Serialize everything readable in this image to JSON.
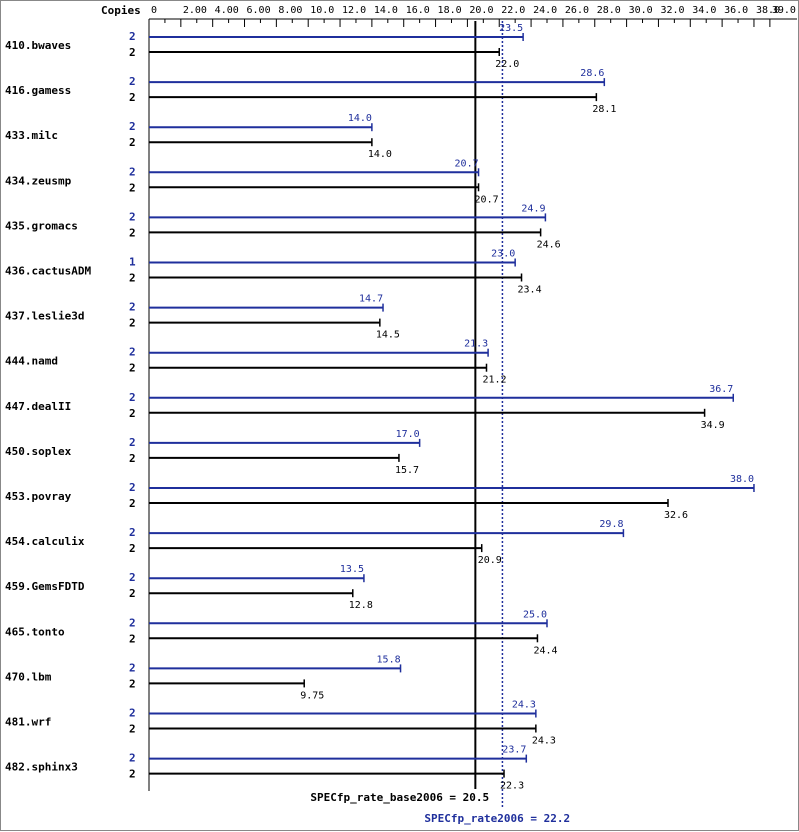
{
  "chart_data": {
    "type": "bar",
    "orientation": "horizontal",
    "axis_label": "Copies",
    "ticks": [
      "0",
      "2.00",
      "4.00",
      "6.00",
      "8.00",
      "10.0",
      "12.0",
      "14.0",
      "16.0",
      "18.0",
      "20.0",
      "22.0",
      "24.0",
      "26.0",
      "28.0",
      "30.0",
      "32.0",
      "34.0",
      "36.0",
      "38.0",
      "39.0"
    ],
    "xlim": [
      0,
      39.0
    ],
    "categories": [
      "410.bwaves",
      "416.gamess",
      "433.milc",
      "434.zeusmp",
      "435.gromacs",
      "436.cactusADM",
      "437.leslie3d",
      "444.namd",
      "447.dealII",
      "450.soplex",
      "453.povray",
      "454.calculix",
      "459.GemsFDTD",
      "465.tonto",
      "470.lbm",
      "481.wrf",
      "482.sphinx3"
    ],
    "series": [
      {
        "key": "peak",
        "copies": [
          "2",
          "2",
          "2",
          "2",
          "2",
          "1",
          "2",
          "2",
          "2",
          "2",
          "2",
          "2",
          "2",
          "2",
          "2",
          "2",
          "2"
        ],
        "values": [
          23.5,
          28.6,
          14.0,
          20.7,
          24.9,
          23.0,
          14.7,
          21.3,
          36.7,
          17.0,
          38.0,
          29.8,
          13.5,
          25.0,
          15.8,
          24.3,
          23.7
        ],
        "labels": [
          "23.5",
          "28.6",
          "14.0",
          "20.7",
          "24.9",
          "23.0",
          "14.7",
          "21.3",
          "36.7",
          "17.0",
          "38.0",
          "29.8",
          "13.5",
          "25.0",
          "15.8",
          "24.3",
          "23.7"
        ]
      },
      {
        "key": "base",
        "copies": [
          "2",
          "2",
          "2",
          "2",
          "2",
          "2",
          "2",
          "2",
          "2",
          "2",
          "2",
          "2",
          "2",
          "2",
          "2",
          "2",
          "2"
        ],
        "values": [
          22.0,
          28.1,
          14.0,
          20.7,
          24.6,
          23.4,
          14.5,
          21.2,
          34.9,
          15.7,
          32.6,
          20.9,
          12.8,
          24.4,
          9.75,
          24.3,
          22.3
        ],
        "labels": [
          "22.0",
          "28.1",
          "14.0",
          "20.7",
          "24.6",
          "23.4",
          "14.5",
          "21.2",
          "34.9",
          "15.7",
          "32.6",
          "20.9",
          "12.8",
          "24.4",
          "9.75",
          "24.3",
          "22.3"
        ]
      }
    ],
    "reference_lines": [
      {
        "key": "base",
        "label": "SPECfp_rate_base2006 = 20.5",
        "value": 20.5
      },
      {
        "key": "peak",
        "label": "SPECfp_rate2006 = 22.2",
        "value": 22.2
      }
    ],
    "colors": {
      "peak": "#1f2f9c",
      "base": "#000000",
      "axis": "#000000",
      "background": "#ffffff"
    }
  }
}
